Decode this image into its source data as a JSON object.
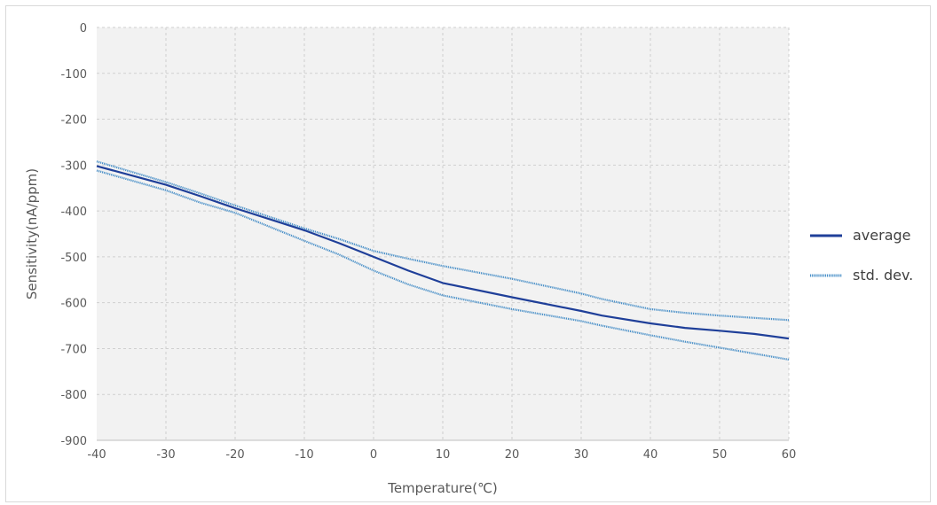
{
  "chart_data": {
    "type": "line",
    "title": "",
    "xlabel": "Temperature(℃)",
    "ylabel": "Sensitivity(nA/ppm)",
    "xlim": [
      -40,
      60
    ],
    "ylim": [
      -900,
      0
    ],
    "xticks": [
      -40,
      -30,
      -20,
      -10,
      0,
      10,
      20,
      30,
      40,
      50,
      60
    ],
    "yticks": [
      0,
      -100,
      -200,
      -300,
      -400,
      -500,
      -600,
      -700,
      -800,
      -900
    ],
    "grid": true,
    "legend_position": "right",
    "x": [
      -40,
      -30,
      -25,
      -20,
      -10,
      -5,
      0,
      5,
      10,
      20,
      30,
      33,
      40,
      45,
      50,
      55,
      60
    ],
    "series": [
      {
        "name": "average",
        "color": "#1f3f99",
        "style": "solid",
        "values": [
          -302,
          -343,
          -368,
          -394,
          -442,
          -470,
          -500,
          -530,
          -557,
          -588,
          -618,
          -628,
          -645,
          -655,
          -661,
          -668,
          -678
        ]
      },
      {
        "name": "std. dev.",
        "color": "#4a90c8",
        "style": "dotted",
        "values": [
          -292,
          -337,
          -362,
          -388,
          -438,
          -461,
          -487,
          -504,
          -520,
          -548,
          -580,
          -592,
          -614,
          -622,
          -628,
          -633,
          -638
        ]
      },
      {
        "name": "std. dev.",
        "color": "#4a90c8",
        "style": "dotted",
        "legend": false,
        "values": [
          -312,
          -355,
          -382,
          -404,
          -465,
          -495,
          -530,
          -560,
          -584,
          -614,
          -640,
          -650,
          -671,
          -685,
          -698,
          -711,
          -724
        ]
      }
    ]
  }
}
